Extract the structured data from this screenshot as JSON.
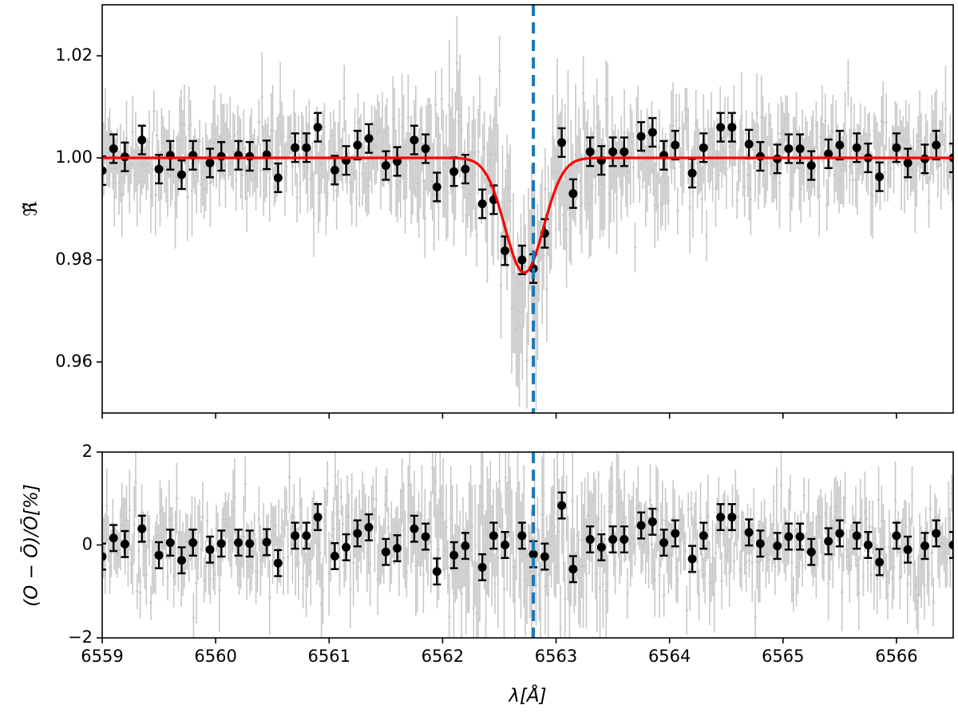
{
  "chart_data": [
    {
      "type": "scatter",
      "title": "",
      "xlabel": "",
      "ylabel": "ℜ̃",
      "xlim": [
        6559.0,
        6566.5
      ],
      "ylim": [
        0.95,
        1.03
      ],
      "yticks": [
        "0.96",
        "0.98",
        "1.00",
        "1.02"
      ],
      "yticks_values": [
        0.96,
        0.98,
        1.0,
        1.02
      ],
      "x_tick_labels_shown": false,
      "grid": false,
      "legend": "none",
      "reference_line": {
        "x": 6562.8,
        "style": "dashed",
        "color": "#1f77b4"
      },
      "raw_series_color": "#c8c8c8",
      "binned_series": {
        "color": "#000000",
        "x": [
          6559.0,
          6559.1,
          6559.2,
          6559.35,
          6559.5,
          6559.6,
          6559.7,
          6559.8,
          6559.95,
          6560.05,
          6560.2,
          6560.3,
          6560.45,
          6560.55,
          6560.7,
          6560.8,
          6560.9,
          6561.05,
          6561.15,
          6561.25,
          6561.35,
          6561.5,
          6561.6,
          6561.75,
          6561.85,
          6561.95,
          6562.1,
          6562.2,
          6562.35,
          6562.45,
          6562.55,
          6562.7,
          6562.8,
          6562.9,
          6563.05,
          6563.15,
          6563.3,
          6563.4,
          6563.5,
          6563.6,
          6563.75,
          6563.85,
          6563.95,
          6564.05,
          6564.2,
          6564.3,
          6564.45,
          6564.55,
          6564.7,
          6564.8,
          6564.95,
          6565.05,
          6565.15,
          6565.25,
          6565.4,
          6565.5,
          6565.65,
          6565.75,
          6565.85,
          6566.0,
          6566.1,
          6566.25,
          6566.35,
          6566.5
        ],
        "y": [
          0.9975,
          1.0018,
          1.0002,
          1.0035,
          0.9978,
          1.0005,
          0.9967,
          1.0005,
          0.999,
          1.0003,
          1.0005,
          1.0003,
          1.0006,
          0.9961,
          1.002,
          1.002,
          1.006,
          0.9976,
          0.9995,
          1.0025,
          1.0038,
          0.9985,
          0.9993,
          1.0035,
          1.0018,
          0.9943,
          0.9973,
          0.9978,
          0.991,
          0.9918,
          0.9818,
          0.98,
          0.9783,
          0.9852,
          1.003,
          0.993,
          1.0012,
          0.9995,
          1.0012,
          1.0012,
          1.0042,
          1.005,
          1.0005,
          1.0025,
          0.997,
          1.002,
          1.006,
          1.006,
          1.0027,
          1.0003,
          0.9998,
          1.0018,
          1.0018,
          0.9985,
          1.0008,
          1.0025,
          1.002,
          1.0,
          0.9963,
          1.002,
          0.999,
          0.9998,
          1.0025,
          1.0
        ],
        "yerr": 0.0028
      },
      "model": {
        "type": "gaussian-absorption",
        "color": "#ff0000",
        "baseline": 1.0,
        "depth": 0.0225,
        "center": 6562.72,
        "sigma": 0.17
      }
    },
    {
      "type": "scatter",
      "title": "",
      "xlabel": "λ[Å]",
      "ylabel": "(O − Ō)/Ō[%]",
      "xlim": [
        6559.0,
        6566.5
      ],
      "ylim": [
        -2,
        2
      ],
      "xticks": [
        "6559",
        "6560",
        "6561",
        "6562",
        "6563",
        "6564",
        "6565",
        "6566"
      ],
      "xticks_values": [
        6559,
        6560,
        6561,
        6562,
        6563,
        6564,
        6565,
        6566
      ],
      "yticks": [
        "−2",
        "0",
        "2"
      ],
      "yticks_values": [
        -2,
        0,
        2
      ],
      "grid": false,
      "legend": "none",
      "reference_line": {
        "x": 6562.8,
        "style": "dashed",
        "color": "#1f77b4"
      },
      "raw_series_color": "#c8c8c8",
      "binned_series": {
        "color": "#000000",
        "x": [
          6559.0,
          6559.1,
          6559.2,
          6559.35,
          6559.5,
          6559.6,
          6559.7,
          6559.8,
          6559.95,
          6560.05,
          6560.2,
          6560.3,
          6560.45,
          6560.55,
          6560.7,
          6560.8,
          6560.9,
          6561.05,
          6561.15,
          6561.25,
          6561.35,
          6561.5,
          6561.6,
          6561.75,
          6561.85,
          6561.95,
          6562.1,
          6562.2,
          6562.35,
          6562.45,
          6562.55,
          6562.7,
          6562.8,
          6562.9,
          6563.05,
          6563.15,
          6563.3,
          6563.4,
          6563.5,
          6563.6,
          6563.75,
          6563.85,
          6563.95,
          6564.05,
          6564.2,
          6564.3,
          6564.45,
          6564.55,
          6564.7,
          6564.8,
          6564.95,
          6565.05,
          6565.15,
          6565.25,
          6565.4,
          6565.5,
          6565.65,
          6565.75,
          6565.85,
          6566.0,
          6566.1,
          6566.25,
          6566.35,
          6566.5
        ],
        "y": [
          -0.25,
          0.15,
          0.02,
          0.35,
          -0.22,
          0.05,
          -0.33,
          0.05,
          -0.1,
          0.03,
          0.05,
          0.03,
          0.06,
          -0.39,
          0.2,
          0.2,
          0.6,
          -0.24,
          -0.05,
          0.25,
          0.38,
          -0.15,
          -0.07,
          0.35,
          0.18,
          -0.57,
          -0.22,
          -0.02,
          -0.48,
          0.2,
          0.0,
          0.2,
          -0.2,
          -0.25,
          0.85,
          -0.52,
          0.12,
          -0.05,
          0.12,
          0.12,
          0.42,
          0.5,
          0.05,
          0.25,
          -0.3,
          0.2,
          0.6,
          0.6,
          0.27,
          0.03,
          -0.02,
          0.18,
          0.18,
          -0.15,
          0.08,
          0.25,
          0.2,
          0.0,
          -0.37,
          0.2,
          -0.1,
          -0.02,
          0.25,
          0.0
        ],
        "yerr": 0.28
      }
    }
  ]
}
